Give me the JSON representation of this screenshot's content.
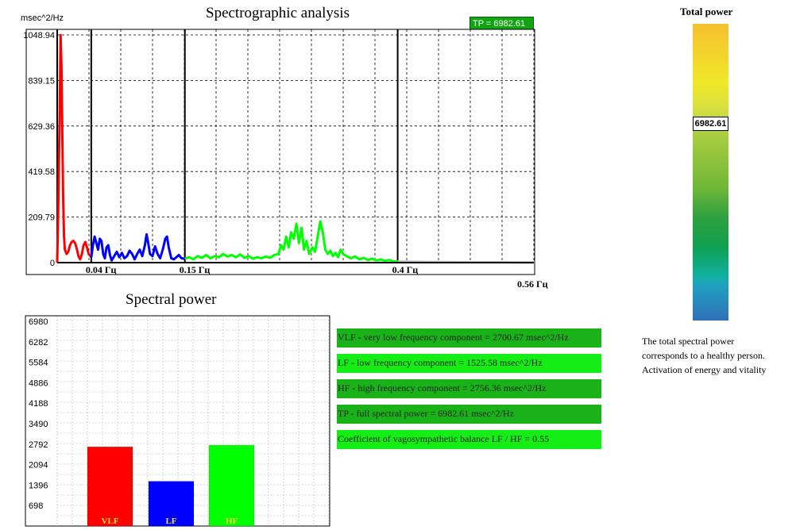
{
  "spectrogram": {
    "title": "Spectrographic analysis",
    "ylabel": "msec^2/Hz",
    "tp_badge": "TP = 6982.61",
    "max_freq_label": "0.56 Гц",
    "chart_data": {
      "type": "line",
      "title": "Spectrographic analysis",
      "ylabel": "msec^2/Hz",
      "xlim": [
        0,
        0.56
      ],
      "ylim": [
        0,
        1048.94
      ],
      "y_ticks": [
        "1048.94",
        "839.15",
        "629.36",
        "419.58",
        "209.79",
        "0"
      ],
      "band_markers": [
        {
          "x": 0.04,
          "label": "0.04 Гц"
        },
        {
          "x": 0.15,
          "label": "0.15 Гц"
        },
        {
          "x": 0.4,
          "label": "0.4 Гц"
        }
      ],
      "grid": true,
      "series": [
        {
          "band": "VLF",
          "color": "#ff0000",
          "points": [
            [
              0.0,
              0
            ],
            [
              0.001,
              200
            ],
            [
              0.002,
              450
            ],
            [
              0.003,
              700
            ],
            [
              0.004,
              1048
            ],
            [
              0.005,
              900
            ],
            [
              0.006,
              600
            ],
            [
              0.007,
              300
            ],
            [
              0.008,
              120
            ],
            [
              0.009,
              60
            ],
            [
              0.011,
              40
            ],
            [
              0.013,
              50
            ],
            [
              0.015,
              80
            ],
            [
              0.017,
              95
            ],
            [
              0.019,
              100
            ],
            [
              0.021,
              90
            ],
            [
              0.023,
              65
            ],
            [
              0.025,
              30
            ],
            [
              0.027,
              15
            ],
            [
              0.029,
              40
            ],
            [
              0.031,
              80
            ],
            [
              0.033,
              95
            ],
            [
              0.035,
              70
            ],
            [
              0.037,
              40
            ],
            [
              0.039,
              30
            ],
            [
              0.04,
              25
            ]
          ]
        },
        {
          "band": "LF",
          "color": "#0000ff",
          "points": [
            [
              0.04,
              25
            ],
            [
              0.042,
              80
            ],
            [
              0.044,
              120
            ],
            [
              0.046,
              90
            ],
            [
              0.048,
              60
            ],
            [
              0.05,
              110
            ],
            [
              0.052,
              100
            ],
            [
              0.054,
              40
            ],
            [
              0.056,
              20
            ],
            [
              0.058,
              70
            ],
            [
              0.06,
              80
            ],
            [
              0.062,
              35
            ],
            [
              0.064,
              10
            ],
            [
              0.067,
              30
            ],
            [
              0.07,
              50
            ],
            [
              0.073,
              25
            ],
            [
              0.076,
              45
            ],
            [
              0.079,
              20
            ],
            [
              0.082,
              30
            ],
            [
              0.085,
              55
            ],
            [
              0.088,
              40
            ],
            [
              0.091,
              15
            ],
            [
              0.094,
              40
            ],
            [
              0.097,
              60
            ],
            [
              0.1,
              30
            ],
            [
              0.103,
              80
            ],
            [
              0.105,
              130
            ],
            [
              0.107,
              90
            ],
            [
              0.109,
              40
            ],
            [
              0.112,
              30
            ],
            [
              0.115,
              75
            ],
            [
              0.118,
              40
            ],
            [
              0.121,
              20
            ],
            [
              0.124,
              60
            ],
            [
              0.127,
              110
            ],
            [
              0.129,
              120
            ],
            [
              0.131,
              70
            ],
            [
              0.134,
              20
            ],
            [
              0.137,
              15
            ],
            [
              0.14,
              25
            ],
            [
              0.143,
              35
            ],
            [
              0.146,
              20
            ],
            [
              0.15,
              18
            ]
          ]
        },
        {
          "band": "HF",
          "color": "#00ff00",
          "points": [
            [
              0.15,
              18
            ],
            [
              0.155,
              25
            ],
            [
              0.16,
              15
            ],
            [
              0.165,
              30
            ],
            [
              0.17,
              22
            ],
            [
              0.175,
              35
            ],
            [
              0.18,
              20
            ],
            [
              0.185,
              30
            ],
            [
              0.19,
              25
            ],
            [
              0.195,
              40
            ],
            [
              0.2,
              28
            ],
            [
              0.205,
              35
            ],
            [
              0.21,
              25
            ],
            [
              0.215,
              38
            ],
            [
              0.22,
              22
            ],
            [
              0.225,
              30
            ],
            [
              0.23,
              18
            ],
            [
              0.235,
              25
            ],
            [
              0.24,
              20
            ],
            [
              0.245,
              28
            ],
            [
              0.25,
              22
            ],
            [
              0.255,
              35
            ],
            [
              0.26,
              40
            ],
            [
              0.263,
              80
            ],
            [
              0.266,
              60
            ],
            [
              0.269,
              120
            ],
            [
              0.272,
              70
            ],
            [
              0.275,
              140
            ],
            [
              0.278,
              110
            ],
            [
              0.281,
              180
            ],
            [
              0.284,
              90
            ],
            [
              0.287,
              160
            ],
            [
              0.29,
              60
            ],
            [
              0.293,
              100
            ],
            [
              0.296,
              40
            ],
            [
              0.3,
              70
            ],
            [
              0.303,
              50
            ],
            [
              0.306,
              120
            ],
            [
              0.309,
              190
            ],
            [
              0.312,
              140
            ],
            [
              0.315,
              60
            ],
            [
              0.318,
              40
            ],
            [
              0.321,
              55
            ],
            [
              0.324,
              30
            ],
            [
              0.327,
              45
            ],
            [
              0.33,
              25
            ],
            [
              0.333,
              60
            ],
            [
              0.336,
              40
            ],
            [
              0.34,
              30
            ],
            [
              0.345,
              20
            ],
            [
              0.35,
              28
            ],
            [
              0.355,
              15
            ],
            [
              0.36,
              22
            ],
            [
              0.365,
              12
            ],
            [
              0.37,
              18
            ],
            [
              0.375,
              10
            ],
            [
              0.38,
              15
            ],
            [
              0.385,
              8
            ],
            [
              0.39,
              12
            ],
            [
              0.395,
              6
            ],
            [
              0.4,
              5
            ]
          ]
        },
        {
          "band": "above HF",
          "color": "#c0c0c0",
          "points": [
            [
              0.4,
              5
            ],
            [
              0.42,
              4
            ],
            [
              0.44,
              3
            ],
            [
              0.46,
              3
            ],
            [
              0.48,
              2
            ],
            [
              0.5,
              2
            ],
            [
              0.52,
              2
            ],
            [
              0.54,
              1
            ],
            [
              0.56,
              1
            ]
          ]
        }
      ]
    }
  },
  "spectral_power": {
    "title": "Spectral power",
    "chart_data": {
      "type": "bar",
      "title": "Spectral power",
      "categories": [
        "VLF",
        "LF",
        "HF"
      ],
      "values": [
        2700.67,
        1525.58,
        2756.36
      ],
      "colors": [
        "#ff0000",
        "#0000ff",
        "#00ff00"
      ],
      "ylim": [
        0,
        6980
      ],
      "y_ticks": [
        "6980",
        "6282",
        "5584",
        "4886",
        "4188",
        "3490",
        "2792",
        "2094",
        "1396",
        "698"
      ],
      "grid": true
    }
  },
  "info": [
    {
      "text": "VLF - very low frequency component = 2700.67 msec^2/Hz",
      "style": "dark"
    },
    {
      "text": "LF - low frequency component = 1525.58 msec^2/Hz",
      "style": "light"
    },
    {
      "text": "HF - high frequency component = 2756.36 msec^2/Hz",
      "style": "dark"
    },
    {
      "text": "TP - full spectral power  = 6982.61 msec^2/Hz",
      "style": "dark"
    },
    {
      "text": "Coefficient of vagosympathetic balance LF / HF = 0.55",
      "style": "light"
    }
  ],
  "total_power": {
    "title": "Total power",
    "value_label": "6982.61",
    "value": 6982.61,
    "note_lines": [
      "The total spectral power",
      "corresponds to a healthy person.",
      "Activation of energy and vitality"
    ]
  }
}
